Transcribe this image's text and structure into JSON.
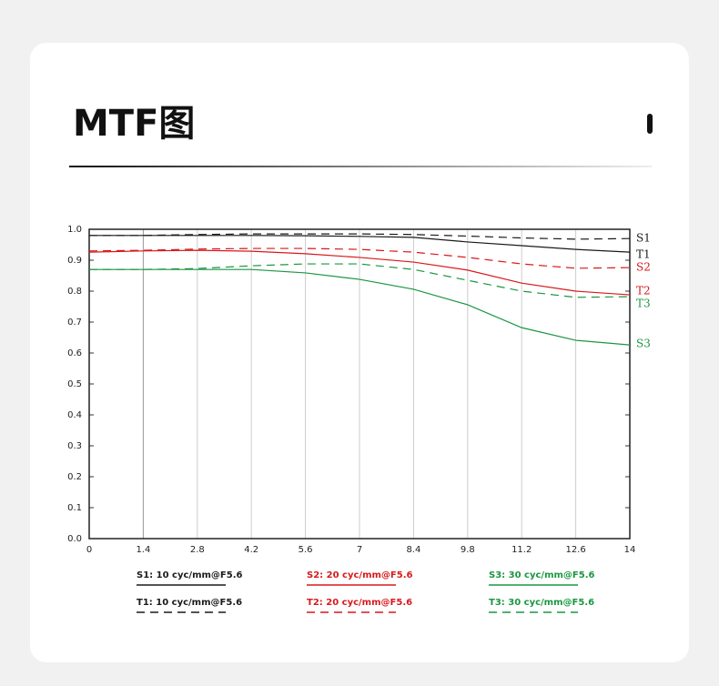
{
  "chart_data": {
    "type": "line",
    "title": "MTF图",
    "x": [
      0,
      1.4,
      2.8,
      4.2,
      5.6,
      7,
      8.4,
      9.8,
      11.2,
      12.6,
      14
    ],
    "xlim": [
      0,
      14
    ],
    "xticks": [
      0,
      1.4,
      2.8,
      4.2,
      5.6,
      7,
      8.4,
      9.8,
      11.2,
      12.6,
      14
    ],
    "ylim": [
      0,
      1
    ],
    "yticks": [
      {
        "value": 0,
        "label": "0.0"
      },
      0.1,
      0.2,
      0.3,
      0.4,
      0.5,
      0.6,
      0.7,
      0.8,
      0.9,
      {
        "value": 1,
        "label": "1.0"
      }
    ],
    "grid": true,
    "series": [
      {
        "name": "S1: 10 cyc/mm@F5.6",
        "color": "#1a1a1a",
        "dash": false,
        "values": [
          0.98,
          0.98,
          0.98,
          0.98,
          0.979,
          0.977,
          0.974,
          0.959,
          0.947,
          0.935,
          0.926
        ]
      },
      {
        "name": "S2: 20 cyc/mm@F5.6",
        "color": "#d7191c",
        "dash": false,
        "values": [
          0.926,
          0.93,
          0.932,
          0.929,
          0.921,
          0.909,
          0.894,
          0.868,
          0.826,
          0.8,
          0.788
        ]
      },
      {
        "name": "S3: 30 cyc/mm@F5.6",
        "color": "#1a9641",
        "dash": false,
        "values": [
          0.87,
          0.87,
          0.87,
          0.87,
          0.859,
          0.838,
          0.806,
          0.756,
          0.682,
          0.641,
          0.626
        ]
      },
      {
        "name": "T1: 10 cyc/mm@F5.6",
        "color": "#1a1a1a",
        "dash": true,
        "values": [
          0.98,
          0.98,
          0.983,
          0.985,
          0.985,
          0.985,
          0.983,
          0.978,
          0.972,
          0.968,
          0.97
        ]
      },
      {
        "name": "T2: 20 cyc/mm@F5.6",
        "color": "#d7191c",
        "dash": true,
        "values": [
          0.93,
          0.932,
          0.936,
          0.938,
          0.938,
          0.935,
          0.926,
          0.909,
          0.888,
          0.874,
          0.876
        ]
      },
      {
        "name": "T3:  30 cyc/mm@F5.6",
        "color": "#1a9641",
        "dash": true,
        "values": [
          0.87,
          0.87,
          0.873,
          0.882,
          0.888,
          0.888,
          0.87,
          0.835,
          0.8,
          0.78,
          0.782
        ]
      }
    ],
    "end_labels": [
      {
        "text": "S1",
        "color": "#1a1a1a"
      },
      {
        "text": "T1",
        "color": "#1a1a1a"
      },
      {
        "text": "S2",
        "color": "#d7191c"
      },
      {
        "text": "T2",
        "color": "#d7191c"
      },
      {
        "text": "T3",
        "color": "#1a9641"
      },
      {
        "text": "S3",
        "color": "#1a9641"
      }
    ]
  }
}
